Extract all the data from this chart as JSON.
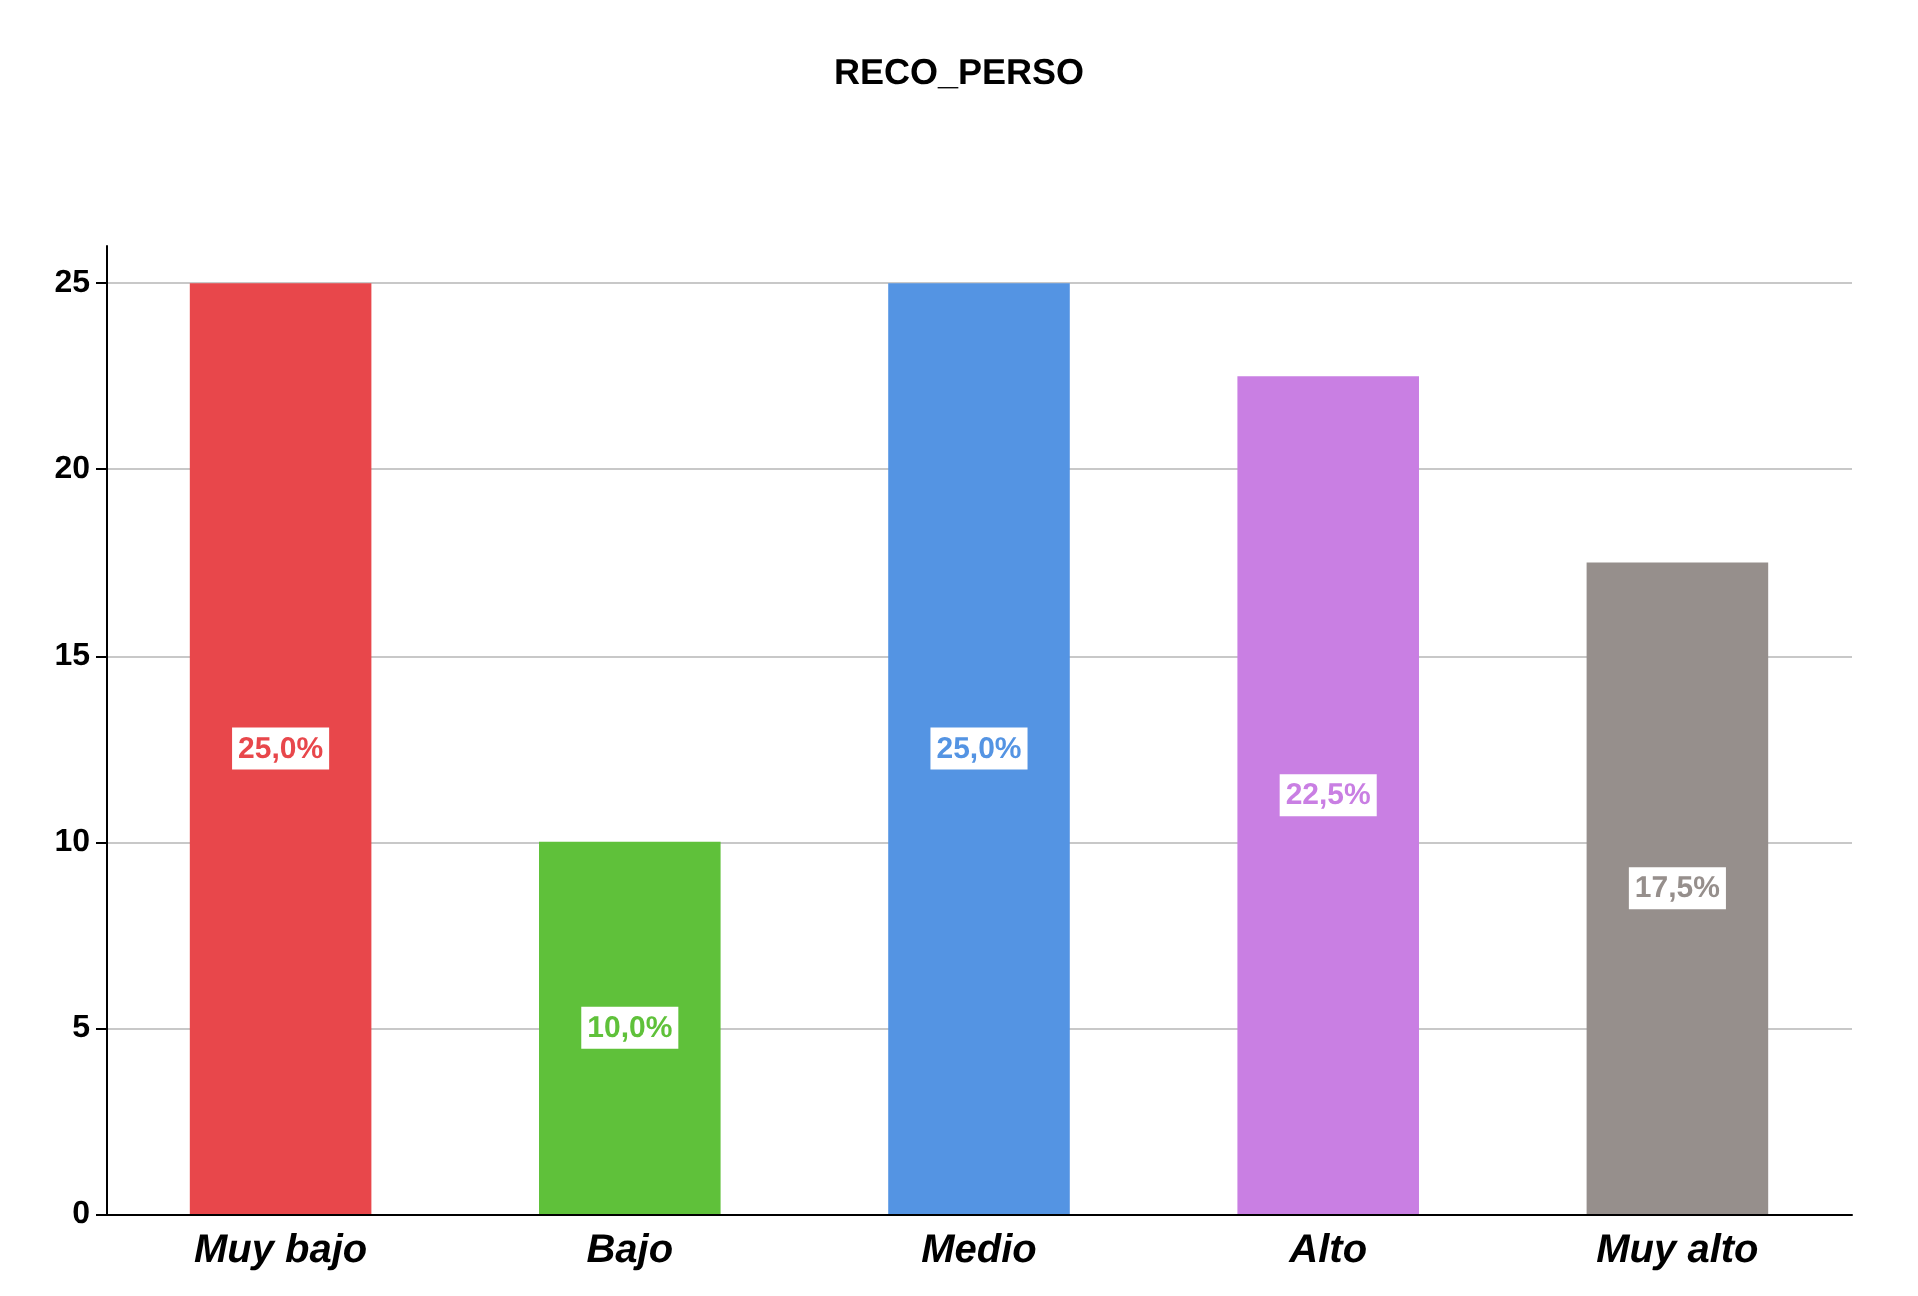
{
  "chart_data": {
    "type": "bar",
    "title": "RECO_PERSO",
    "categories": [
      "Muy bajo",
      "Bajo",
      "Medio",
      "Alto",
      "Muy alto"
    ],
    "values": [
      25,
      10,
      25,
      22.5,
      17.5
    ],
    "colors": [
      "#e8474b",
      "#5fc13a",
      "#5494e3",
      "#c97fe3",
      "#968f8c"
    ],
    "value_labels": [
      "25,0%",
      "10,0%",
      "25,0%",
      "22,5%",
      "17,5%"
    ],
    "ylim": [
      0,
      26
    ],
    "yticks": [
      0,
      5,
      10,
      15,
      20,
      25
    ],
    "grid": "y"
  }
}
